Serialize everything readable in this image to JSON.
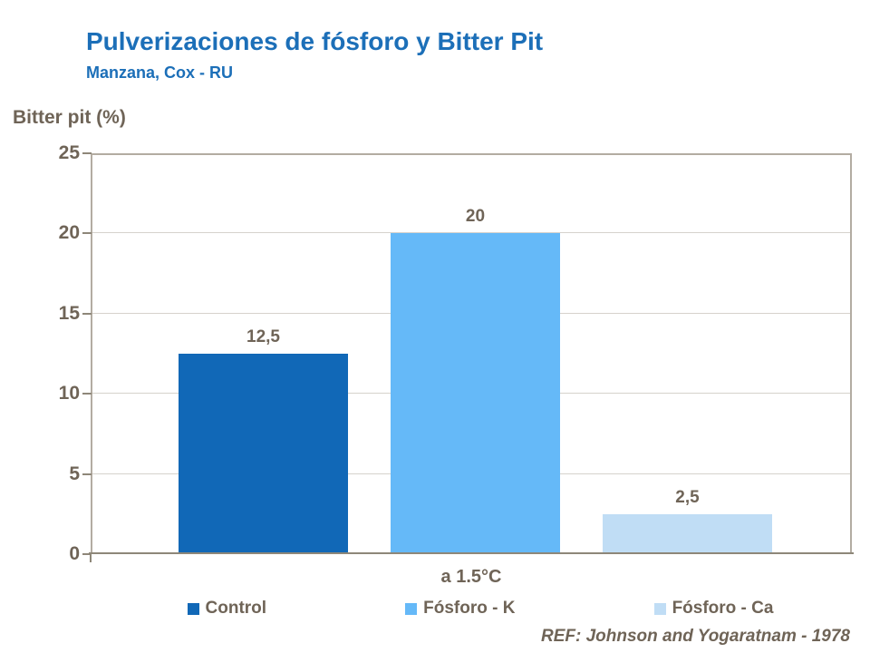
{
  "chart_data": {
    "type": "bar",
    "title": "Pulverizaciones de fósforo y Bitter Pit",
    "subtitle": "Manzana, Cox - RU",
    "axis_title": "Bitter pit (%)",
    "categories": [
      "a 1.5°C"
    ],
    "series": [
      {
        "name": "Control",
        "values": [
          12.5
        ],
        "label": "12,5",
        "color": "#1168b7"
      },
      {
        "name": "Fósforo - K",
        "values": [
          20
        ],
        "label": "20",
        "color": "#65b9f8"
      },
      {
        "name": "Fósforo - Ca",
        "values": [
          2.5
        ],
        "label": "2,5",
        "color": "#c0ddf5"
      }
    ],
    "ylim": [
      0,
      25
    ],
    "yticks": [
      0,
      5,
      10,
      15,
      20,
      25
    ],
    "grid": true,
    "legend_position": "bottom",
    "reference": "REF: Johnson and Yogaratnam - 1978"
  },
  "colors": {
    "title": "#1c6fb8",
    "text": "#6f6457",
    "gridline": "#d6d2cc",
    "plot_border": "#b3aca2",
    "axis_line": "#8e8779"
  }
}
